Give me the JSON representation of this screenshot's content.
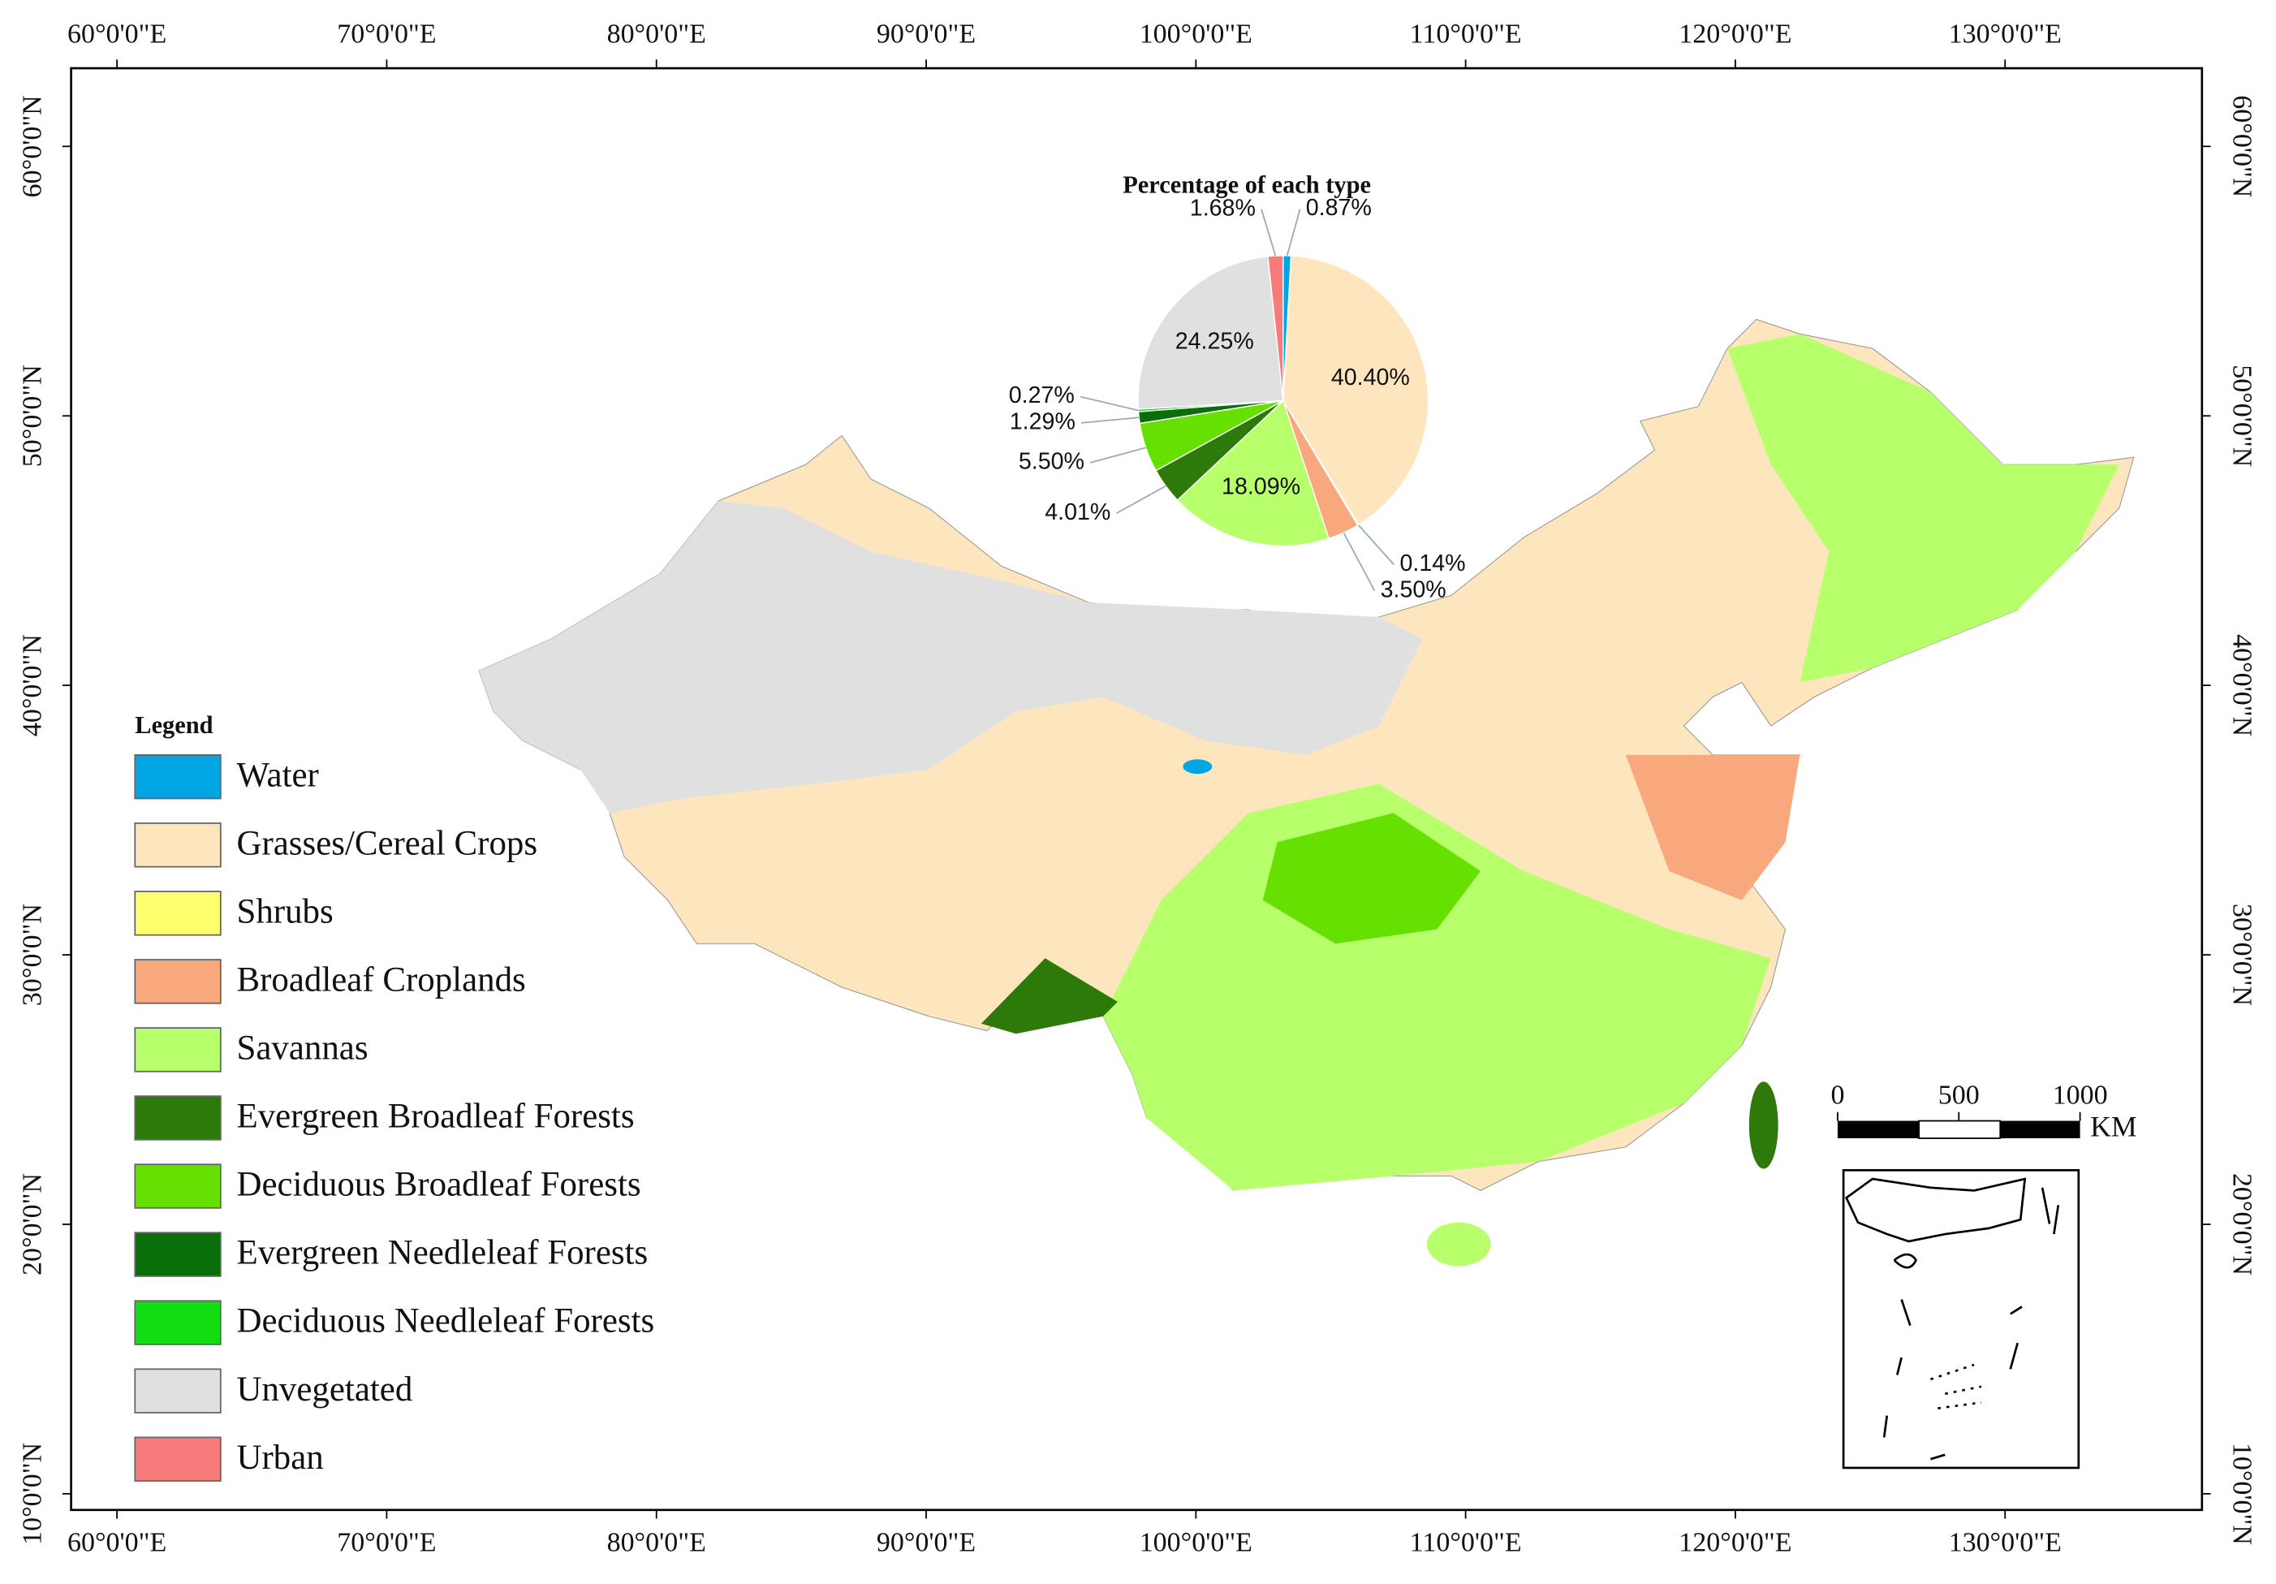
{
  "map": {
    "xlim": [
      58.3,
      137.3
    ],
    "ylim": [
      9.4,
      62.9
    ],
    "xticks": [
      {
        "value": 60,
        "label": "60°0'0\"E"
      },
      {
        "value": 70,
        "label": "70°0'0\"E"
      },
      {
        "value": 80,
        "label": "80°0'0\"E"
      },
      {
        "value": 90,
        "label": "90°0'0\"E"
      },
      {
        "value": 100,
        "label": "100°0'0\"E"
      },
      {
        "value": 110,
        "label": "110°0'0\"E"
      },
      {
        "value": 120,
        "label": "120°0'0\"E"
      },
      {
        "value": 130,
        "label": "130°0'0\"E"
      }
    ],
    "yticks": [
      {
        "value": 10,
        "label": "10°0'0\"N"
      },
      {
        "value": 20,
        "label": "20°0'0\"N"
      },
      {
        "value": 30,
        "label": "30°0'0\"N"
      },
      {
        "value": 40,
        "label": "40°0'0\"N"
      },
      {
        "value": 50,
        "label": "50°0'0\"N"
      },
      {
        "value": 60,
        "label": "60°0'0\"N"
      }
    ],
    "legend_title": "Legend",
    "scale_bar": {
      "ticks": [
        0,
        500,
        1000
      ],
      "unit": "KM"
    }
  },
  "chart_data": {
    "type": "pie",
    "title": "Percentage of each type",
    "categories": [
      "Water",
      "Grasses/Cereal Crops",
      "Shrubs",
      "Broadleaf Croplands",
      "Savannas",
      "Evergreen Broadleaf Forests",
      "Deciduous Broadleaf Forests",
      "Evergreen Needleleaf Forests",
      "Deciduous Needleleaf Forests",
      "Unvegetated",
      "Urban"
    ],
    "values": [
      0.87,
      40.4,
      0.14,
      3.5,
      18.09,
      4.01,
      5.5,
      1.29,
      0.27,
      24.25,
      1.68
    ],
    "value_labels": [
      "0.87%",
      "40.40%",
      "0.14%",
      "3.50%",
      "18.09%",
      "4.01%",
      "5.50%",
      "1.29%",
      "0.27%",
      "24.25%",
      "1.68%"
    ],
    "colors": [
      "#00a5e3",
      "#fde5bd",
      "#ffff6e",
      "#f9a77c",
      "#b7ff6b",
      "#2d7a0a",
      "#66e000",
      "#0a6e0a",
      "#12dc12",
      "#e0e0e0",
      "#f77b7b"
    ]
  }
}
